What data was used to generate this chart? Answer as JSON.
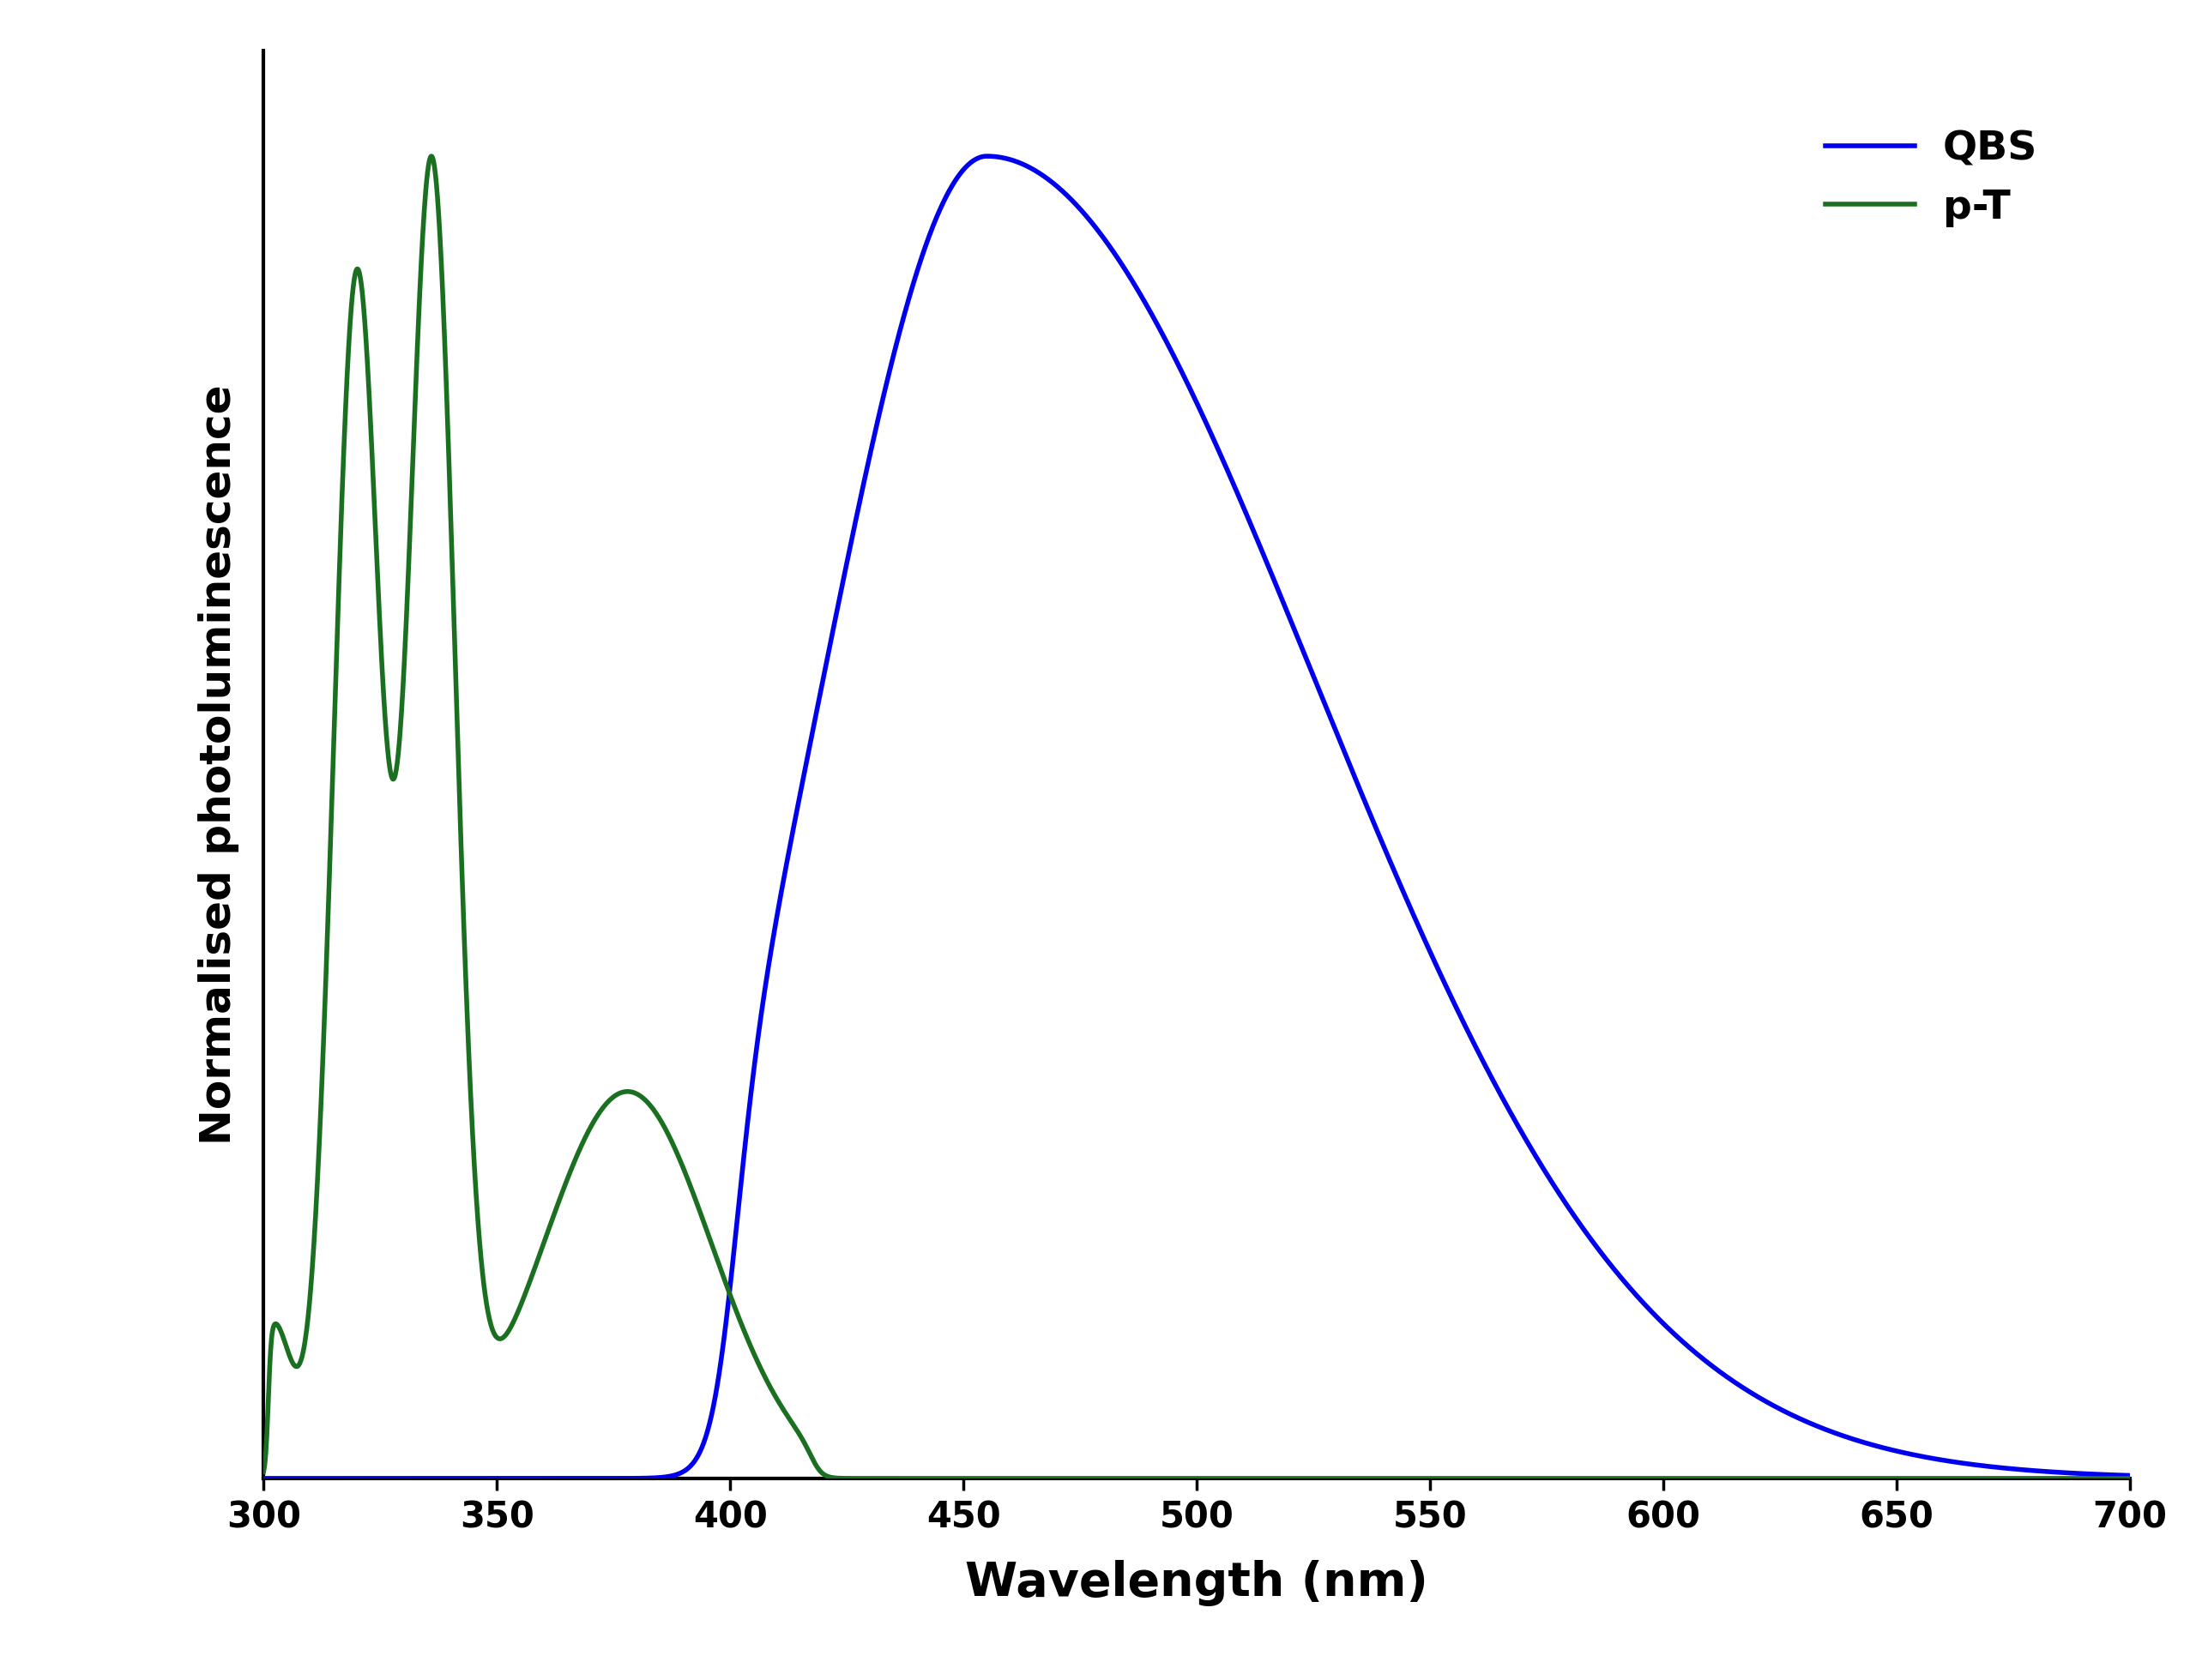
{
  "title": "",
  "xlabel": "Wavelength (nm)",
  "ylabel": "Normalised photoluminescence",
  "xlim": [
    300,
    700
  ],
  "ylim": [
    0,
    1.08
  ],
  "xticks": [
    300,
    350,
    400,
    450,
    500,
    550,
    600,
    650,
    700
  ],
  "background_color": "#ffffff",
  "line_color_QBS": "#0000ee",
  "line_color_pT": "#1a7020",
  "line_width": 4.0,
  "legend_fontsize": 34,
  "tick_fontsize": 30,
  "xlabel_fontsize": 40,
  "ylabel_fontsize": 36
}
